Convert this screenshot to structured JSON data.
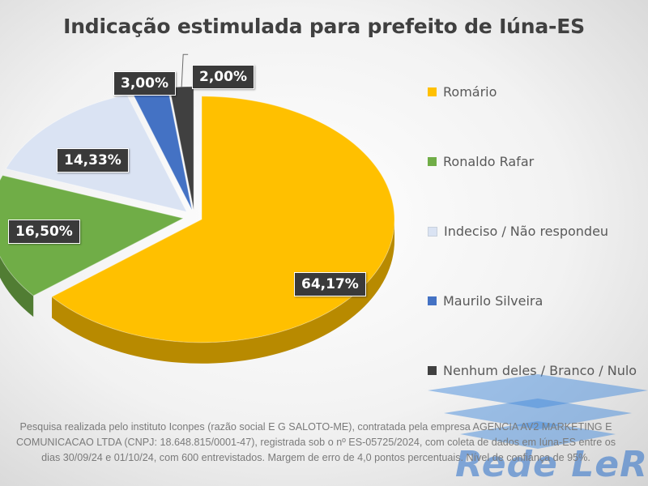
{
  "chart_data": {
    "type": "pie",
    "title": "Indicação estimulada para prefeito de Iúna-ES",
    "slices": [
      {
        "name": "Romário",
        "value": 64.17,
        "label": "64,17%",
        "color": "#ffc000"
      },
      {
        "name": "Ronaldo Rafar",
        "value": 16.5,
        "label": "16,50%",
        "color": "#70ad47"
      },
      {
        "name": "Indeciso / Não respondeu",
        "value": 14.33,
        "label": "14,33%",
        "color": "#dae3f3"
      },
      {
        "name": "Maurilo Silveira",
        "value": 3.0,
        "label": "3,00%",
        "color": "#4472c4"
      },
      {
        "name": "Nenhum deles / Branco / Nulo",
        "value": 2.0,
        "label": "2,00%",
        "color": "#404040"
      }
    ],
    "legend_position": "right"
  },
  "footnote": "Pesquisa realizada pelo instituto Iconpes (razão social E G SALOTO-ME), contratada pela empresa AGENCIA AV2 MARKETING E COMUNICACAO LTDA (CNPJ: 18.648.815/0001-47), registrada sob o nº ES-05725/2024, com coleta de dados em Iúna-ES entre os dias 30/09/24 e 01/10/24, com 600 entrevistados. Margem de erro de 4,0 pontos percentuais. Nível de confiança de 95%.",
  "watermark": "Rede LeR"
}
